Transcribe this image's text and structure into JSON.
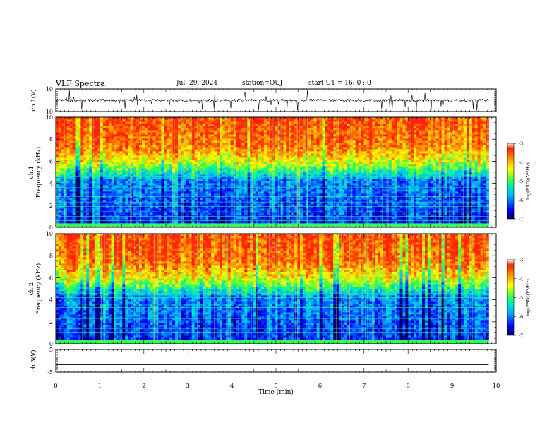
{
  "header": {
    "title": "VLF Spectra",
    "date": "Jul. 29, 2024",
    "station": "station=OUJ",
    "start": "start UT = 16: 0 : 0"
  },
  "colors": {
    "background": "#ffffff",
    "axes": "#000000",
    "spectrogram_scale": [
      "#000070",
      "#0000ff",
      "#00a0ff",
      "#00e0c0",
      "#40ff40",
      "#ffff00",
      "#ff8000",
      "#ff2000"
    ]
  },
  "chart_data": [
    {
      "type": "line",
      "panel": "ch1-waveform",
      "ylabel": "ch.1(V)",
      "ylim": [
        -10,
        10
      ],
      "yticks": [
        "10",
        "-10"
      ],
      "description_level": 0,
      "note": "noisy trace near 0 V with spikes"
    },
    {
      "type": "heatmap",
      "panel": "ch1-spectrogram",
      "ylabel": "ch.1\nFrequency (kHz)",
      "ylim": [
        0,
        10
      ],
      "yticks": [
        "0",
        "2",
        "4",
        "6",
        "8",
        "10"
      ],
      "colorbar": {
        "label": "log(PSD)(V²/Hz)",
        "range": [
          -7,
          -3
        ],
        "ticks": [
          "-3",
          "-4",
          "-5",
          "-6",
          "-7"
        ]
      }
    },
    {
      "type": "heatmap",
      "panel": "ch2-spectrogram",
      "ylabel": "ch.2\nFrequency (kHz)",
      "ylim": [
        0,
        10
      ],
      "yticks": [
        "0",
        "2",
        "4",
        "6",
        "8",
        "10"
      ],
      "colorbar": {
        "label": "log(PSD)(V²/Hz)",
        "range": [
          -7,
          -3
        ],
        "ticks": [
          "-3",
          "-4",
          "-5",
          "-6",
          "-7"
        ]
      }
    },
    {
      "type": "line",
      "panel": "ch3-waveform",
      "ylabel": "ch.3(V)",
      "ylim": [
        -5,
        5
      ],
      "yticks": [
        "5",
        "-5"
      ],
      "level": -1.6
    }
  ],
  "xaxis": {
    "label": "Time (min)",
    "xlim": [
      0,
      10
    ],
    "ticks": [
      "0",
      "1",
      "2",
      "3",
      "4",
      "5",
      "6",
      "7",
      "8",
      "9",
      "10"
    ],
    "data_end": 9.83
  }
}
